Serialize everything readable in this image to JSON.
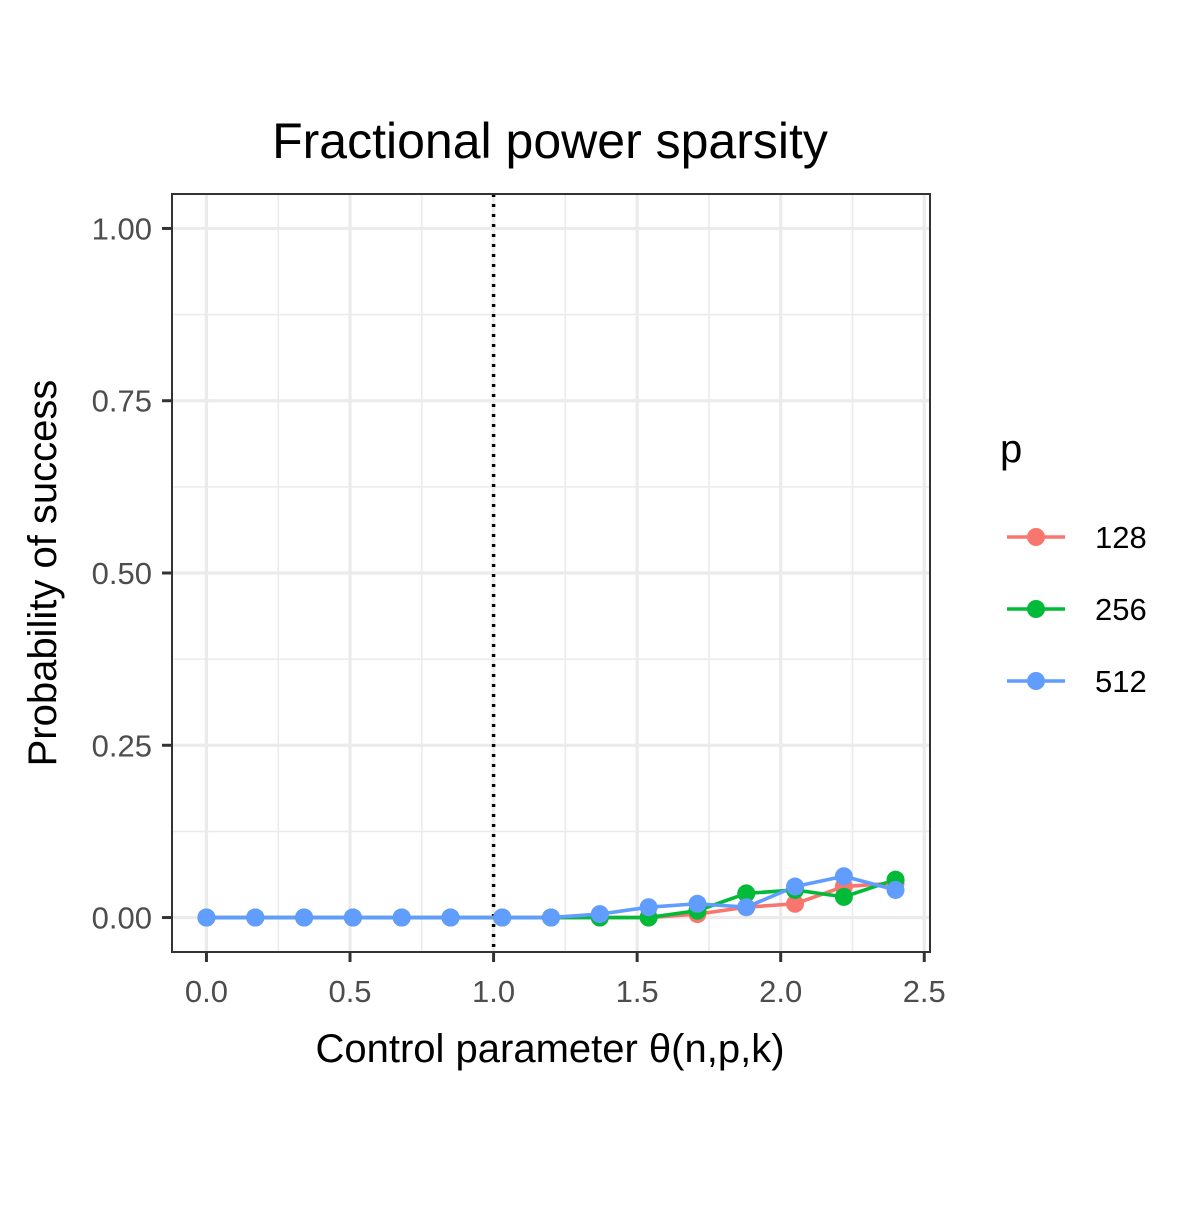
{
  "chart_data": {
    "type": "line",
    "title": "Fractional power sparsity",
    "xlabel": "Control parameter θ(n,p,k)",
    "ylabel": "Probability of success",
    "xlim": [
      -0.12,
      2.52
    ],
    "ylim": [
      -0.05,
      1.05
    ],
    "x_ticks": [
      0.0,
      0.5,
      1.0,
      1.5,
      2.0,
      2.5
    ],
    "x_tick_labels": [
      "0.0",
      "0.5",
      "1.0",
      "1.5",
      "2.0",
      "2.5"
    ],
    "y_ticks": [
      0.0,
      0.25,
      0.5,
      0.75,
      1.0
    ],
    "y_tick_labels": [
      "0.00",
      "0.25",
      "0.50",
      "0.75",
      "1.00"
    ],
    "vline": {
      "x": 1.0,
      "style": "dotted",
      "color": "#000000"
    },
    "grid": true,
    "legend": {
      "title": "p",
      "position": "right"
    },
    "series": [
      {
        "name": "128",
        "color": "#F8766D",
        "x": [
          0.0,
          0.17,
          0.34,
          0.51,
          0.68,
          0.85,
          1.03,
          1.2,
          1.37,
          1.54,
          1.71,
          1.88,
          2.05,
          2.22,
          2.4
        ],
        "y": [
          0.0,
          0.0,
          0.0,
          0.0,
          0.0,
          0.0,
          0.0,
          0.0,
          0.0,
          0.0,
          0.005,
          0.015,
          0.02,
          0.045,
          0.05
        ]
      },
      {
        "name": "256",
        "color": "#00BA38",
        "x": [
          0.0,
          0.17,
          0.34,
          0.51,
          0.68,
          0.85,
          1.03,
          1.2,
          1.37,
          1.54,
          1.71,
          1.88,
          2.05,
          2.22,
          2.4
        ],
        "y": [
          0.0,
          0.0,
          0.0,
          0.0,
          0.0,
          0.0,
          0.0,
          0.0,
          0.0,
          0.0,
          0.01,
          0.035,
          0.04,
          0.03,
          0.055
        ]
      },
      {
        "name": "512",
        "color": "#619CFF",
        "x": [
          0.0,
          0.17,
          0.34,
          0.51,
          0.68,
          0.85,
          1.03,
          1.2,
          1.37,
          1.54,
          1.71,
          1.88,
          2.05,
          2.22,
          2.4
        ],
        "y": [
          0.0,
          0.0,
          0.0,
          0.0,
          0.0,
          0.0,
          0.0,
          0.0,
          0.005,
          0.015,
          0.02,
          0.015,
          0.045,
          0.06,
          0.04
        ]
      }
    ]
  }
}
